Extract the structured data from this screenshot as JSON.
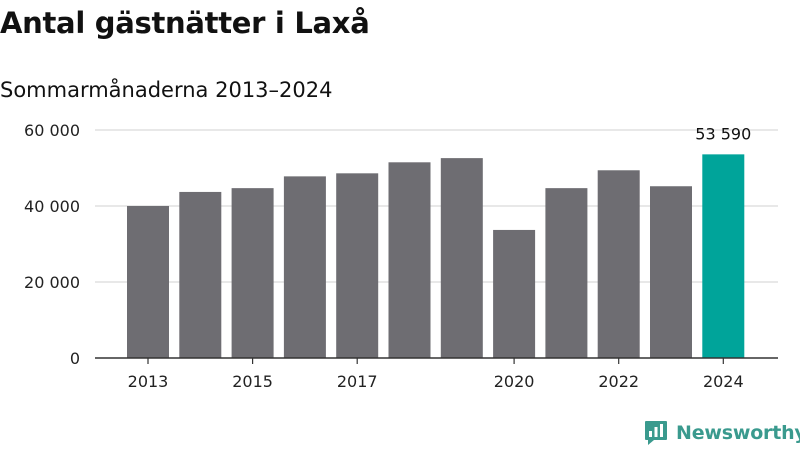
{
  "header": {
    "title": "Antal gästnätter i Laxå",
    "subtitle": "Sommarmånaderna 2013–2024"
  },
  "brand": {
    "name": "Newsworthy",
    "logo_icon": "newsworthy-chart-logo-icon",
    "color": "#3a9a8e"
  },
  "colors": {
    "bar": "#6e6d72",
    "highlight": "#00a49a",
    "grid": "#d9d9d9",
    "axis": "#333333"
  },
  "chart_data": {
    "type": "bar",
    "title": "Antal gästnätter i Laxå",
    "subtitle": "Sommarmånaderna 2013–2024",
    "categories": [
      "2013",
      "2014",
      "2015",
      "2016",
      "2017",
      "2018",
      "2019",
      "2020",
      "2021",
      "2022",
      "2023",
      "2024"
    ],
    "values": [
      40000,
      43700,
      44700,
      47800,
      48600,
      51500,
      52600,
      33700,
      44700,
      49400,
      45200,
      53590
    ],
    "x_tick_labels": [
      "2013",
      "",
      "2015",
      "",
      "2017",
      "",
      "",
      "2020",
      "",
      "2022",
      "",
      "2024"
    ],
    "y_ticks": [
      0,
      20000,
      40000,
      60000
    ],
    "y_tick_labels": [
      "0",
      "20 000",
      "40 000",
      "60 000"
    ],
    "ylim": [
      0,
      60000
    ],
    "highlight_index": 11,
    "data_labels": [
      "",
      "",
      "",
      "",
      "",
      "",
      "",
      "",
      "",
      "",
      "",
      "53 590"
    ],
    "grid": true,
    "legend": "none"
  }
}
